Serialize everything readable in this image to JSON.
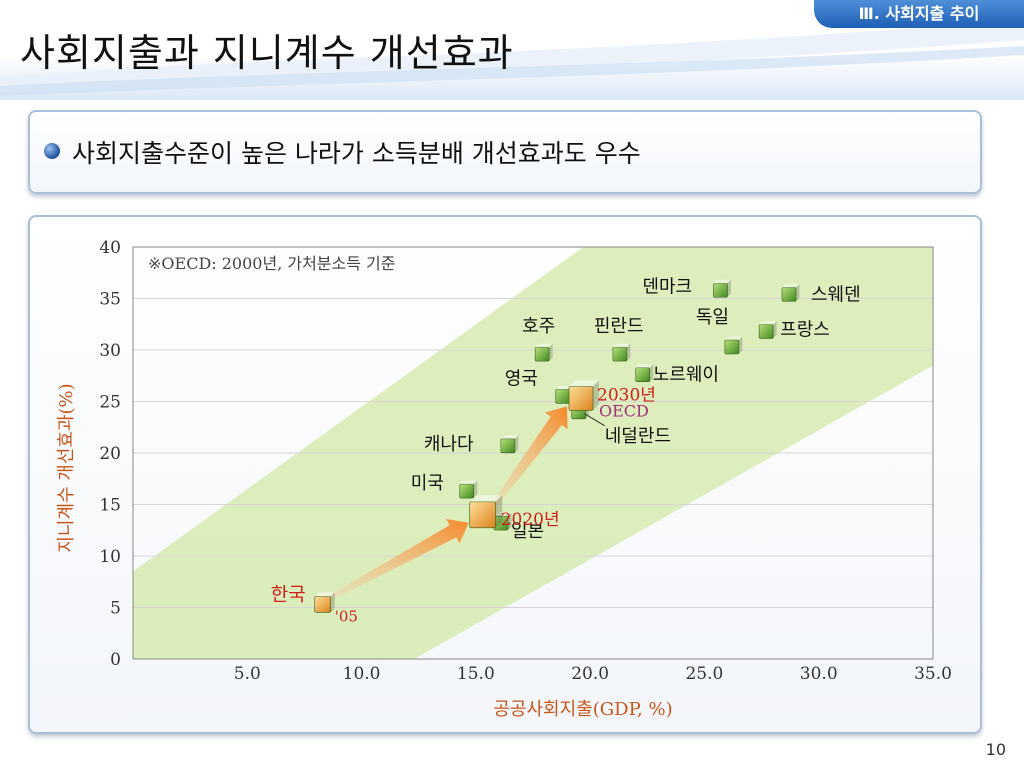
{
  "slide": {
    "section_tab": "Ⅲ. 사회지출 추이",
    "title": "사회지출과 지니계수 개선효과",
    "bullet": "사회지출수준이 높은 나라가 소득분배 개선효과도 우수",
    "page_number": "10"
  },
  "colors": {
    "band": "#d7ebb0",
    "axis_label": "#c8561a",
    "korea_label": "#d0201a",
    "projection_label": "#d0201a",
    "oecd_label": "#a0307a",
    "country_cube": "#6fb23a",
    "highlight_cube": "#f3a52e",
    "arrow": "#f39a3c"
  },
  "chart_data": {
    "type": "scatter",
    "xlabel": "공공사회지출(GDP, %)",
    "ylabel": "지니계수 개선효과(%)",
    "annotation": "※OECD: 2000년, 가처분소득 기준",
    "xlim": [
      0,
      35
    ],
    "ylim": [
      0,
      40
    ],
    "x_ticks": [
      5,
      10,
      15,
      20,
      25,
      30,
      35
    ],
    "x_tick_labels": [
      "5.0",
      "10.0",
      "15.0",
      "20.0",
      "25.0",
      "30.0",
      "35.0"
    ],
    "y_ticks": [
      0,
      5,
      10,
      15,
      20,
      25,
      30,
      35,
      40
    ],
    "y_tick_labels": [
      "0",
      "5",
      "10",
      "15",
      "20",
      "25",
      "30",
      "35",
      "40"
    ],
    "grid": true,
    "points": [
      {
        "label": "덴마크",
        "x": 25.7,
        "y": 35.8
      },
      {
        "label": "스웨덴",
        "x": 28.7,
        "y": 35.4
      },
      {
        "label": "독일",
        "x": 26.2,
        "y": 30.3
      },
      {
        "label": "프랑스",
        "x": 27.7,
        "y": 31.8
      },
      {
        "label": "호주",
        "x": 17.9,
        "y": 29.6
      },
      {
        "label": "핀란드",
        "x": 21.3,
        "y": 29.6
      },
      {
        "label": "노르웨이",
        "x": 22.3,
        "y": 27.6
      },
      {
        "label": "영국",
        "x": 18.8,
        "y": 25.5
      },
      {
        "label": "네덜란드",
        "x": 19.5,
        "y": 24.0
      },
      {
        "label": "캐나다",
        "x": 16.4,
        "y": 20.7
      },
      {
        "label": "미국",
        "x": 14.6,
        "y": 16.3
      },
      {
        "label": "일본",
        "x": 16.1,
        "y": 13.2
      }
    ],
    "korea": {
      "label": "한국",
      "sublabel": "'05",
      "x": 8.3,
      "y": 5.3
    },
    "projections": [
      {
        "label": "2020년",
        "x": 15.3,
        "y": 14.0
      },
      {
        "label": "2030년",
        "x": 19.6,
        "y": 25.3
      }
    ],
    "oecd_label": "OECD"
  }
}
